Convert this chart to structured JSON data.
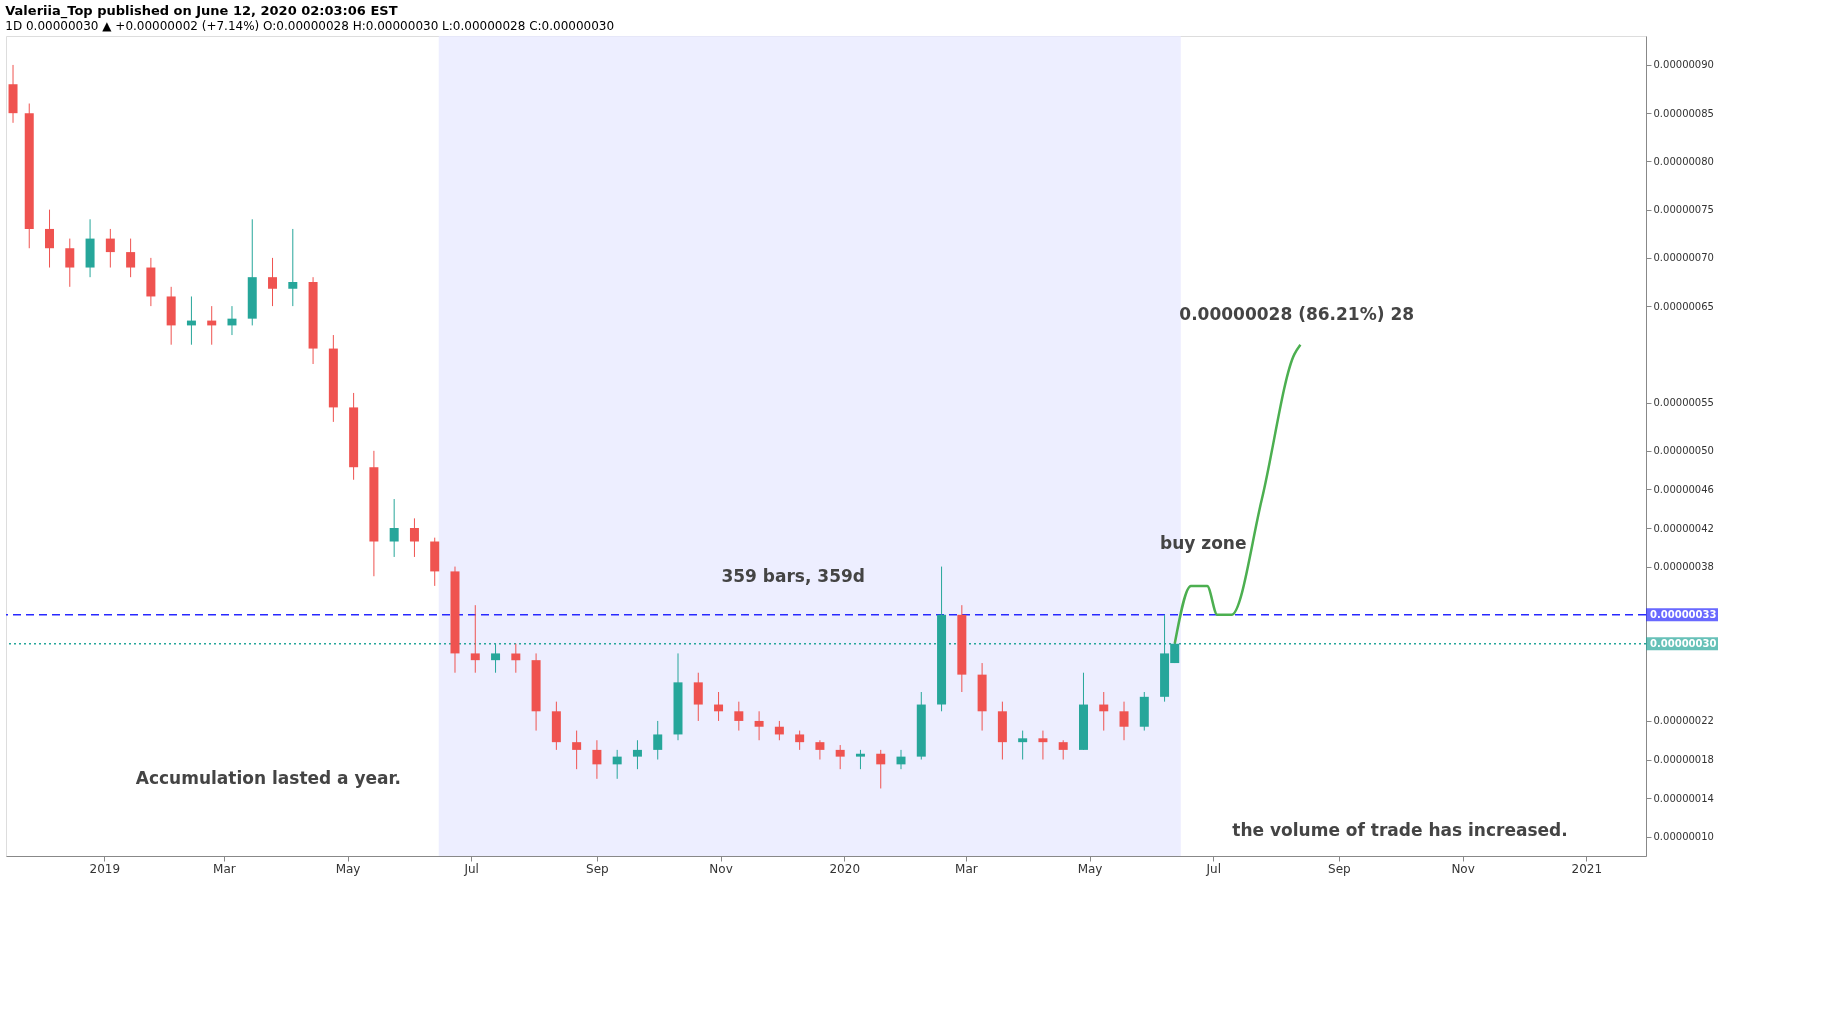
{
  "chart_data": {
    "type": "candlestick",
    "title": "Valeriia_Top published on June 12, 2020 02:03:06 EST",
    "subtitle": "1D 0.00000030 ▲ +0.00000002 (+7.14%) O:0.00000028 H:0.00000030 L:0.00000028 C:0.00000030",
    "x": [
      "2018-11-17",
      "2018-11-25",
      "2018-12-05",
      "2018-12-15",
      "2018-12-25",
      "2019-01-04",
      "2019-01-14",
      "2019-01-24",
      "2019-02-03",
      "2019-02-13",
      "2019-02-23",
      "2019-03-05",
      "2019-03-15",
      "2019-03-25",
      "2019-04-04",
      "2019-04-14",
      "2019-04-24",
      "2019-05-04",
      "2019-05-14",
      "2019-05-24",
      "2019-06-03",
      "2019-06-13",
      "2019-06-23",
      "2019-07-03",
      "2019-07-13",
      "2019-07-23",
      "2019-08-02",
      "2019-08-12",
      "2019-08-22",
      "2019-09-01",
      "2019-09-11",
      "2019-09-21",
      "2019-10-01",
      "2019-10-11",
      "2019-10-21",
      "2019-10-31",
      "2019-11-10",
      "2019-11-20",
      "2019-11-30",
      "2019-12-10",
      "2019-12-20",
      "2019-12-30",
      "2020-01-09",
      "2020-01-19",
      "2020-01-29",
      "2020-02-08",
      "2020-02-18",
      "2020-02-28",
      "2020-03-09",
      "2020-03-19",
      "2020-03-29",
      "2020-04-08",
      "2020-04-18",
      "2020-04-28",
      "2020-05-08",
      "2020-05-18",
      "2020-05-28",
      "2020-06-07",
      "2020-06-12"
    ],
    "ohlc": [
      [
        8.8e-07,
        9e-07,
        8.4e-07,
        8.5e-07
      ],
      [
        8.5e-07,
        8.6e-07,
        7.1e-07,
        7.3e-07
      ],
      [
        7.3e-07,
        7.5e-07,
        6.9e-07,
        7.1e-07
      ],
      [
        7.1e-07,
        7.2e-07,
        6.7e-07,
        6.9e-07
      ],
      [
        6.9e-07,
        7.4e-07,
        6.8e-07,
        7.2e-07
      ],
      [
        7.2e-07,
        7.3e-07,
        6.9e-07,
        7.06e-07
      ],
      [
        7.06e-07,
        7.2e-07,
        6.8e-07,
        6.9e-07
      ],
      [
        6.9e-07,
        7e-07,
        6.5e-07,
        6.6e-07
      ],
      [
        6.6e-07,
        6.7e-07,
        6.1e-07,
        6.3e-07
      ],
      [
        6.3e-07,
        6.6e-07,
        6.1e-07,
        6.35e-07
      ],
      [
        6.35e-07,
        6.5e-07,
        6.1e-07,
        6.3e-07
      ],
      [
        6.3e-07,
        6.5e-07,
        6.2e-07,
        6.37e-07
      ],
      [
        6.37e-07,
        7.4e-07,
        6.3e-07,
        6.8e-07
      ],
      [
        6.8e-07,
        7e-07,
        6.5e-07,
        6.68e-07
      ],
      [
        6.68e-07,
        7.3e-07,
        6.5e-07,
        6.75e-07
      ],
      [
        6.75e-07,
        6.8e-07,
        5.9e-07,
        6.06e-07
      ],
      [
        6.06e-07,
        6.2e-07,
        5.3e-07,
        5.45e-07
      ],
      [
        5.45e-07,
        5.6e-07,
        4.7e-07,
        4.83e-07
      ],
      [
        4.83e-07,
        5e-07,
        3.7e-07,
        4.06e-07
      ],
      [
        4.06e-07,
        4.5e-07,
        3.9e-07,
        4.2e-07
      ],
      [
        4.2e-07,
        4.3e-07,
        3.9e-07,
        4.06e-07
      ],
      [
        4.06e-07,
        4.1e-07,
        3.6e-07,
        3.75e-07
      ],
      [
        3.75e-07,
        3.8e-07,
        2.7e-07,
        2.9e-07
      ],
      [
        2.9e-07,
        3.4e-07,
        2.7e-07,
        2.83e-07
      ],
      [
        2.83e-07,
        3e-07,
        2.7e-07,
        2.9e-07
      ],
      [
        2.9e-07,
        3e-07,
        2.7e-07,
        2.83e-07
      ],
      [
        2.83e-07,
        2.9e-07,
        2.1e-07,
        2.3e-07
      ],
      [
        2.3e-07,
        2.4e-07,
        1.9e-07,
        1.98e-07
      ],
      [
        1.98e-07,
        2.1e-07,
        1.7e-07,
        1.9e-07
      ],
      [
        1.9e-07,
        2e-07,
        1.6e-07,
        1.75e-07
      ],
      [
        1.75e-07,
        1.9e-07,
        1.6e-07,
        1.83e-07
      ],
      [
        1.83e-07,
        2e-07,
        1.7e-07,
        1.9e-07
      ],
      [
        1.9e-07,
        2.2e-07,
        1.8e-07,
        2.06e-07
      ],
      [
        2.06e-07,
        2.9e-07,
        2e-07,
        2.6e-07
      ],
      [
        2.6e-07,
        2.7e-07,
        2.2e-07,
        2.37e-07
      ],
      [
        2.37e-07,
        2.5e-07,
        2.2e-07,
        2.3e-07
      ],
      [
        2.3e-07,
        2.4e-07,
        2.1e-07,
        2.2e-07
      ],
      [
        2.2e-07,
        2.3e-07,
        2e-07,
        2.14e-07
      ],
      [
        2.14e-07,
        2.2e-07,
        2e-07,
        2.06e-07
      ],
      [
        2.06e-07,
        2.1e-07,
        1.9e-07,
        1.98e-07
      ],
      [
        1.98e-07,
        2e-07,
        1.8e-07,
        1.9e-07
      ],
      [
        1.9e-07,
        1.95e-07,
        1.7e-07,
        1.83e-07
      ],
      [
        1.83e-07,
        1.9e-07,
        1.7e-07,
        1.86e-07
      ],
      [
        1.86e-07,
        1.9e-07,
        1.5e-07,
        1.75e-07
      ],
      [
        1.75e-07,
        1.9e-07,
        1.7e-07,
        1.83e-07
      ],
      [
        1.83e-07,
        2.5e-07,
        1.8e-07,
        2.37e-07
      ],
      [
        2.37e-07,
        3.8e-07,
        2.3e-07,
        3.3e-07
      ],
      [
        3.3e-07,
        3.4e-07,
        2.5e-07,
        2.68e-07
      ],
      [
        2.68e-07,
        2.8e-07,
        2.1e-07,
        2.3e-07
      ],
      [
        2.3e-07,
        2.4e-07,
        1.8e-07,
        1.98e-07
      ],
      [
        1.98e-07,
        2.1e-07,
        1.8e-07,
        2.02e-07
      ],
      [
        2.02e-07,
        2.1e-07,
        1.8e-07,
        1.98e-07
      ],
      [
        1.98e-07,
        2e-07,
        1.8e-07,
        1.9e-07
      ],
      [
        1.9e-07,
        2.7e-07,
        1.9e-07,
        2.37e-07
      ],
      [
        2.37e-07,
        2.5e-07,
        2.1e-07,
        2.3e-07
      ],
      [
        2.3e-07,
        2.4e-07,
        2e-07,
        2.14e-07
      ],
      [
        2.14e-07,
        2.5e-07,
        2.1e-07,
        2.45e-07
      ],
      [
        2.45e-07,
        3.3e-07,
        2.4e-07,
        2.9e-07
      ],
      [
        2.8e-07,
        3e-07,
        2.8e-07,
        3e-07
      ]
    ],
    "colors": [
      "#ef5350",
      "#ef5350",
      "#ef5350",
      "#ef5350",
      "#26a69a",
      "#ef5350",
      "#ef5350",
      "#ef5350",
      "#ef5350",
      "#26a69a",
      "#ef5350",
      "#26a69a",
      "#26a69a",
      "#ef5350",
      "#26a69a",
      "#ef5350",
      "#ef5350",
      "#ef5350",
      "#ef5350",
      "#26a69a",
      "#ef5350",
      "#ef5350",
      "#ef5350",
      "#ef5350",
      "#26a69a",
      "#ef5350",
      "#ef5350",
      "#ef5350",
      "#ef5350",
      "#ef5350",
      "#26a69a",
      "#26a69a",
      "#26a69a",
      "#26a69a",
      "#ef5350",
      "#ef5350",
      "#ef5350",
      "#ef5350",
      "#ef5350",
      "#ef5350",
      "#ef5350",
      "#ef5350",
      "#26a69a",
      "#ef5350",
      "#26a69a",
      "#26a69a",
      "#26a69a",
      "#ef5350",
      "#ef5350",
      "#ef5350",
      "#26a69a",
      "#ef5350",
      "#ef5350",
      "#26a69a",
      "#ef5350",
      "#ef5350",
      "#26a69a",
      "#26a69a",
      "#26a69a"
    ],
    "series": [
      {
        "type": "line",
        "color": "#4caf50",
        "x": [
          "2020-06-12",
          "2020-06-20",
          "2020-06-28",
          "2020-07-03",
          "2020-07-10",
          "2020-07-25",
          "2020-08-10",
          "2020-08-13"
        ],
        "values": [
          3e-07,
          3.6e-07,
          3.6e-07,
          3.3e-07,
          3.3e-07,
          4.5e-07,
          6e-07,
          6.1e-07
        ]
      }
    ],
    "xlim": [
      "2018-11-16",
      "2021-01-28"
    ],
    "xticks": [
      {
        "value": "2019-01-01",
        "label": "2019"
      },
      {
        "value": "2019-03-01",
        "label": "Mar"
      },
      {
        "value": "2019-05-01",
        "label": "May"
      },
      {
        "value": "2019-07-01",
        "label": "Jul"
      },
      {
        "value": "2019-09-01",
        "label": "Sep"
      },
      {
        "value": "2019-11-01",
        "label": "Nov"
      },
      {
        "value": "2020-01-01",
        "label": "2020"
      },
      {
        "value": "2020-03-01",
        "label": "Mar"
      },
      {
        "value": "2020-05-01",
        "label": "May"
      },
      {
        "value": "2020-07-01",
        "label": "Jul"
      },
      {
        "value": "2020-09-01",
        "label": "Sep"
      },
      {
        "value": "2020-11-01",
        "label": "Nov"
      },
      {
        "value": "2021-01-01",
        "label": "2021"
      }
    ],
    "ylim": [
      8e-08,
      9.3e-07
    ],
    "yticks": [
      {
        "value": 1e-07,
        "label": "0.00000010"
      },
      {
        "value": 1.4e-07,
        "label": "0.00000014"
      },
      {
        "value": 1.8e-07,
        "label": "0.00000018"
      },
      {
        "value": 2.2e-07,
        "label": "0.00000022"
      },
      {
        "value": 3.8e-07,
        "label": "0.00000038"
      },
      {
        "value": 4.2e-07,
        "label": "0.00000042"
      },
      {
        "value": 4.6e-07,
        "label": "0.00000046"
      },
      {
        "value": 5e-07,
        "label": "0.00000050"
      },
      {
        "value": 5.5e-07,
        "label": "0.00000055"
      },
      {
        "value": 6.5e-07,
        "label": "0.00000065"
      },
      {
        "value": 7e-07,
        "label": "0.00000070"
      },
      {
        "value": 7.5e-07,
        "label": "0.00000075"
      },
      {
        "value": 8e-07,
        "label": "0.00000080"
      },
      {
        "value": 8.5e-07,
        "label": "0.00000085"
      },
      {
        "value": 9e-07,
        "label": "0.00000090"
      }
    ],
    "ref_lines": [
      {
        "axis": "y",
        "value": 3.3e-07,
        "label": "0.00000033",
        "color": "#2929ff",
        "line_style": "dashed"
      },
      {
        "axis": "y",
        "value": 3e-07,
        "label": "0.00000030",
        "color": "#26a69a",
        "line_style": "dotted"
      }
    ],
    "bands": [
      {
        "axis": "x",
        "from": "2019-06-15",
        "to": "2020-06-15",
        "color": "#e8eaff"
      }
    ],
    "annotations": [
      "0.00000028 (86.21%) 28",
      "359 bars, 359d",
      "buy zone",
      "Accumulation lasted a year.",
      "the volume of trade has increased."
    ]
  }
}
